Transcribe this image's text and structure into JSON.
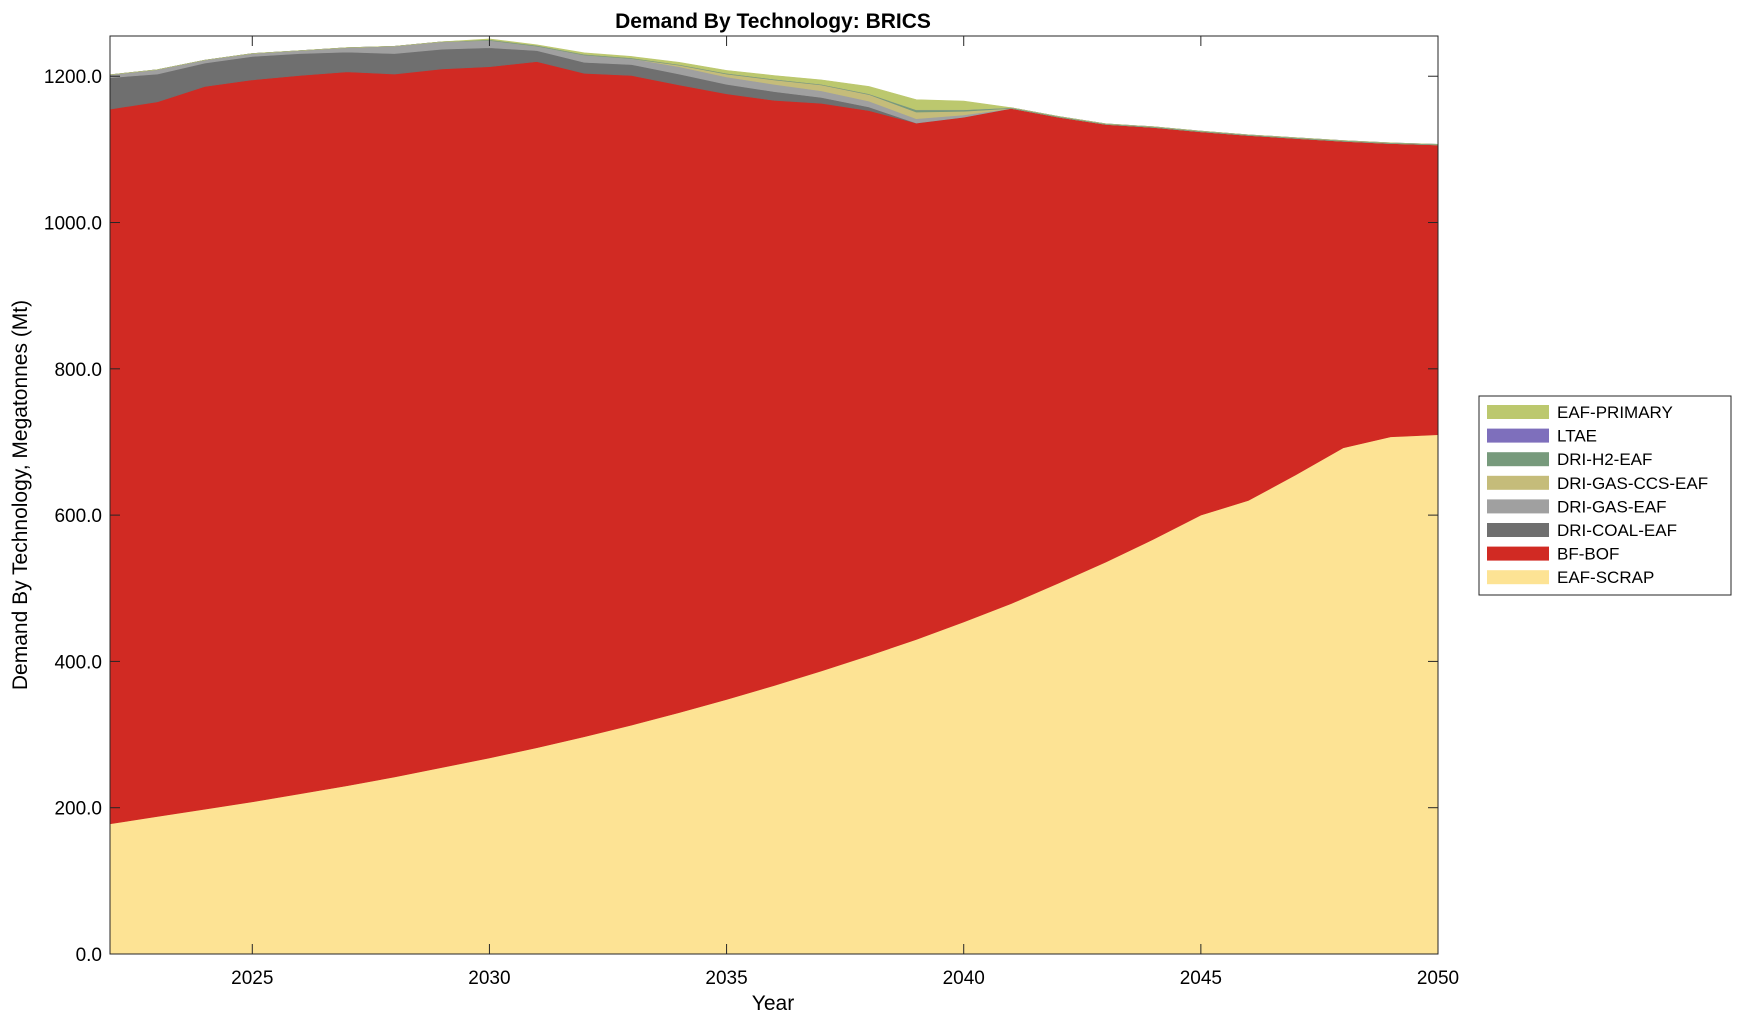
{
  "chart_data": {
    "type": "area",
    "title": "Demand By Technology: BRICS",
    "xlabel": "Year",
    "ylabel": "Demand By Technology, Megatonnes (Mt)",
    "xlim": [
      2022,
      2050
    ],
    "ylim": [
      0,
      1255
    ],
    "xticks": [
      2025,
      2030,
      2035,
      2040,
      2045,
      2050
    ],
    "xtick_labels": [
      "2025",
      "2030",
      "2035",
      "2040",
      "2045",
      "2050"
    ],
    "yticks": [
      0,
      200,
      400,
      600,
      800,
      1000,
      1200
    ],
    "ytick_labels": [
      "0.0",
      "200.0",
      "400.0",
      "600.0",
      "800.0",
      "1000.0",
      "1200.0"
    ],
    "grid": false,
    "legend_position": "right",
    "x": [
      2022,
      2023,
      2024,
      2025,
      2026,
      2027,
      2028,
      2029,
      2030,
      2031,
      2032,
      2033,
      2034,
      2035,
      2036,
      2037,
      2038,
      2039,
      2040,
      2041,
      2042,
      2043,
      2044,
      2045,
      2046,
      2047,
      2048,
      2049,
      2050
    ],
    "series": [
      {
        "name": "EAF-SCRAP",
        "color": "#FDE394",
        "values": [
          178,
          188,
          198,
          208,
          219,
          230,
          242,
          255,
          268,
          282,
          297,
          313,
          330,
          348,
          367,
          387,
          408,
          430,
          454,
          479,
          507,
          536,
          567,
          600,
          620,
          655,
          692,
          707,
          710
        ]
      },
      {
        "name": "BF-BOF",
        "color": "#D12A23",
        "values": [
          977,
          977,
          988,
          987,
          982,
          976,
          961,
          955,
          945,
          938,
          907,
          888,
          858,
          828,
          800,
          776,
          745,
          706,
          690,
          677,
          637,
          598,
          563,
          524,
          499,
          460,
          419,
          401,
          396
        ]
      },
      {
        "name": "DRI-COAL-EAF",
        "color": "#6F6F6F",
        "values": [
          43,
          38,
          32,
          32,
          30,
          27,
          28,
          27,
          26,
          15,
          15,
          15,
          15,
          13,
          12,
          8,
          5,
          0,
          0,
          0,
          0,
          0,
          0,
          0,
          0,
          0,
          0,
          0,
          0
        ]
      },
      {
        "name": "DRI-GAS-EAF",
        "color": "#A0A0A0",
        "values": [
          4,
          6,
          4,
          4,
          4,
          6,
          10,
          10,
          10,
          6,
          10,
          8,
          10,
          10,
          10,
          9,
          8,
          6,
          3,
          0,
          0,
          0,
          0,
          0,
          0,
          0,
          0,
          0,
          0
        ]
      },
      {
        "name": "DRI-GAS-CCS-EAF",
        "color": "#C5BC7A",
        "values": [
          0,
          0,
          0,
          0,
          0,
          0,
          0,
          0,
          0,
          0,
          0,
          0,
          2,
          4,
          6,
          8,
          9,
          9,
          5,
          0,
          0,
          0,
          0,
          0,
          0,
          0,
          0,
          0,
          0
        ]
      },
      {
        "name": "DRI-H2-EAF",
        "color": "#779A7C",
        "values": [
          0,
          0,
          0,
          0,
          0,
          0,
          0,
          0,
          1,
          1,
          1,
          1,
          1,
          1,
          1,
          1,
          1,
          3,
          2,
          1,
          1,
          1,
          1,
          1,
          1,
          1,
          1,
          1,
          1
        ]
      },
      {
        "name": "LTAE",
        "color": "#7E6FBC",
        "values": [
          0,
          0,
          0,
          0,
          0,
          0,
          0,
          0,
          0,
          0,
          0,
          0,
          0,
          0,
          0,
          0,
          0,
          0,
          0,
          0,
          0,
          0,
          0,
          0,
          0,
          0,
          0,
          0,
          0
        ]
      },
      {
        "name": "EAF-PRIMARY",
        "color": "#BCC86E",
        "values": [
          0,
          0,
          0,
          0,
          0,
          0,
          0,
          0,
          1,
          1,
          2,
          2,
          3,
          4,
          5,
          6,
          10,
          14,
          12,
          0,
          0,
          0,
          0,
          0,
          0,
          0,
          0,
          0,
          0
        ]
      }
    ],
    "legend_order": [
      "EAF-PRIMARY",
      "LTAE",
      "DRI-H2-EAF",
      "DRI-GAS-CCS-EAF",
      "DRI-GAS-EAF",
      "DRI-COAL-EAF",
      "BF-BOF",
      "EAF-SCRAP"
    ]
  }
}
